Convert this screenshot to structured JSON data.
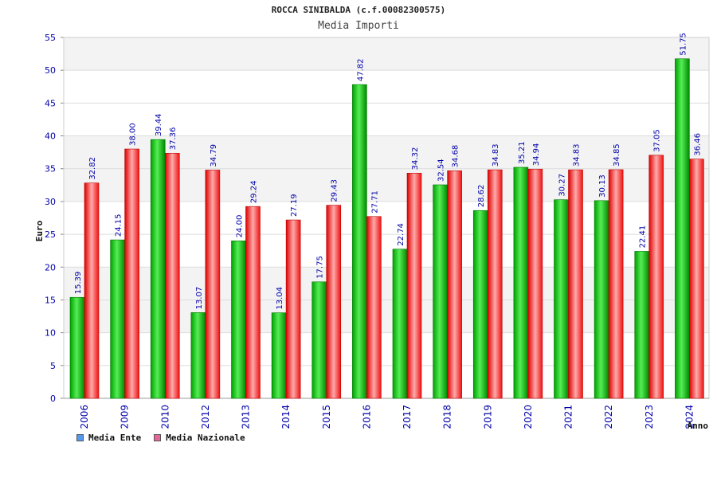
{
  "chart_data": {
    "type": "bar",
    "title": "ROCCA SINIBALDA (c.f.00082300575)",
    "subtitle": "Media Importi",
    "ylabel": "Euro",
    "xlabel": "Anno",
    "ylim": [
      0,
      55
    ],
    "yticks": [
      0,
      5,
      10,
      15,
      20,
      25,
      30,
      35,
      40,
      45,
      50,
      55
    ],
    "categories": [
      "2006",
      "2009",
      "2010",
      "2012",
      "2013",
      "2014",
      "2015",
      "2016",
      "2017",
      "2018",
      "2019",
      "2020",
      "2021",
      "2022",
      "2023",
      "2024"
    ],
    "series": [
      {
        "name": "Media Ente",
        "color": "#00aa00",
        "values": [
          15.39,
          24.15,
          39.44,
          13.07,
          24.0,
          13.04,
          17.75,
          47.82,
          22.74,
          32.54,
          28.62,
          35.21,
          30.27,
          30.13,
          22.41,
          51.75
        ],
        "labels": [
          "15.39",
          "24.15",
          "39.44",
          "13.07",
          "24.00",
          "13.04",
          "17.75",
          "47.82",
          "22.74",
          "32.54",
          "28.62",
          "35.21",
          "30.27",
          "30.13",
          "22.41",
          "51.75"
        ]
      },
      {
        "name": "Media Nazionale",
        "color": "#ee2222",
        "values": [
          32.82,
          38.0,
          37.36,
          34.79,
          29.24,
          27.19,
          29.43,
          27.71,
          34.32,
          34.68,
          34.83,
          34.94,
          34.83,
          34.85,
          37.05,
          36.46
        ],
        "labels": [
          "32.82",
          "38.00",
          "37.36",
          "34.79",
          "29.24",
          "27.19",
          "29.43",
          "27.71",
          "34.32",
          "34.68",
          "34.83",
          "34.94",
          "34.83",
          "34.85",
          "37.05",
          "36.46"
        ]
      }
    ],
    "legend_position": "bottom-left",
    "grid": true
  },
  "legend": {
    "ente_label": "Media Ente",
    "ente_color": "#5599ee",
    "naz_label": "Media Nazionale",
    "naz_color": "#e56699"
  }
}
